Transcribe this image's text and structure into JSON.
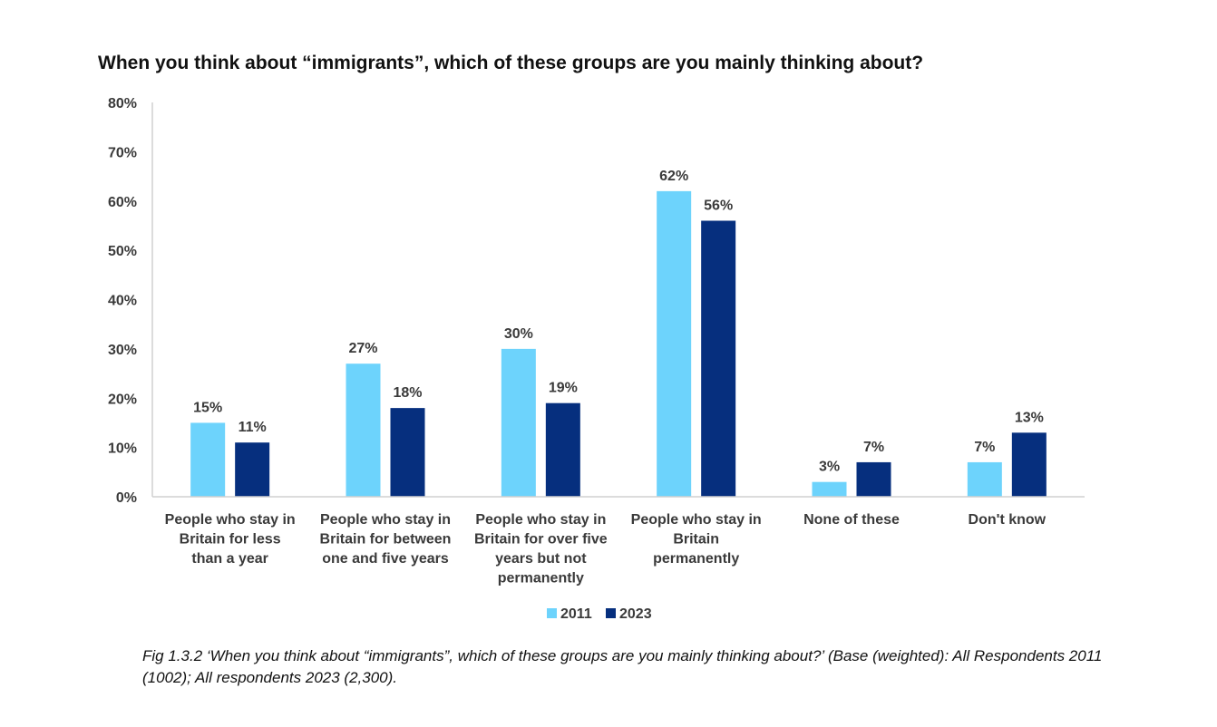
{
  "chart_data": {
    "type": "bar",
    "title": "When you think about “immigrants”, which of these groups are you mainly thinking about?",
    "categories": [
      [
        "People who stay in",
        "Britain for less",
        "than a year"
      ],
      [
        "People who stay in",
        "Britain for between",
        "one and five years"
      ],
      [
        "People who stay in",
        "Britain for over five",
        "years but not",
        "permanently"
      ],
      [
        "People who stay in",
        "Britain",
        "permanently"
      ],
      [
        "None of these"
      ],
      [
        "Don't know"
      ]
    ],
    "series": [
      {
        "name": "2011",
        "color": "#6dd3fc",
        "values": [
          15,
          27,
          30,
          62,
          3,
          7
        ]
      },
      {
        "name": "2023",
        "color": "#062f7e",
        "values": [
          11,
          18,
          19,
          56,
          7,
          13
        ]
      }
    ],
    "value_labels": {
      "2011": [
        "15%",
        "27%",
        "30%",
        "62%",
        "3%",
        "7%"
      ],
      "2023": [
        "11%",
        "18%",
        "19%",
        "56%",
        "7%",
        "13%"
      ]
    },
    "yticks": [
      "0%",
      "10%",
      "20%",
      "30%",
      "40%",
      "50%",
      "60%",
      "70%",
      "80%"
    ],
    "ylim": [
      0,
      80
    ],
    "legend_position": "bottom",
    "grid": false
  },
  "caption": {
    "fig_label": "Fig 1.3.2",
    "text": " ‘When you think about “immigrants”, which of these groups are you mainly thinking about?’ (Base (weighted): All Respondents 2011 (1002); All respondents 2023 (2,300)."
  }
}
